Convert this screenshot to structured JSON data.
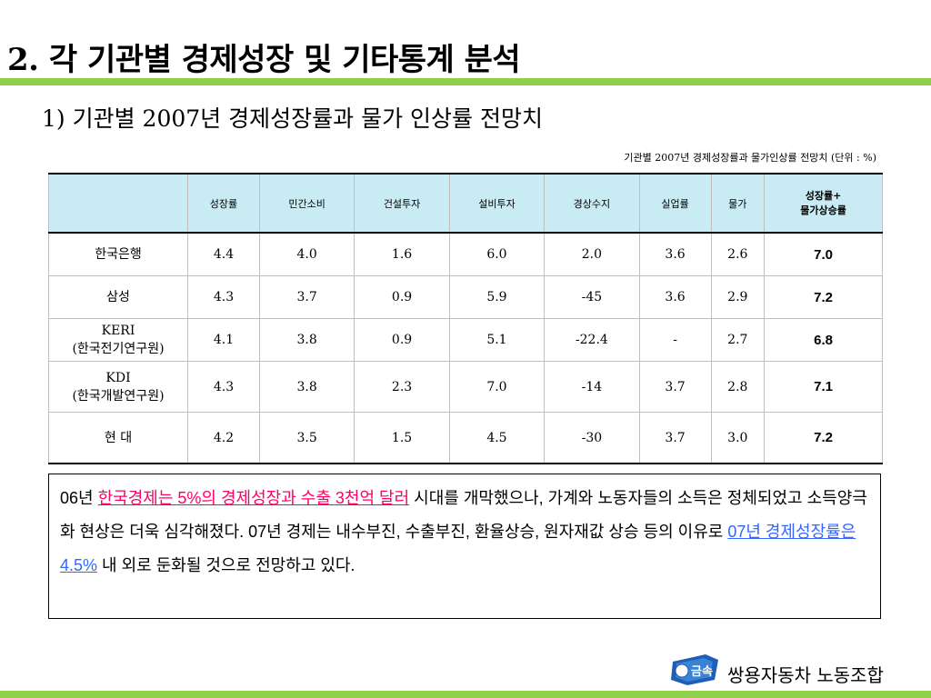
{
  "title": "2. 각 기관별 경제성장 및 기타통계 분석",
  "subtitle": "1) 기관별 2007년 경제성장률과 물가 인상률 전망치",
  "caption": "기관별 2007년 경제성장률과 물가인상률 전망치 (단위 : %)",
  "table": {
    "headers": [
      "성장률",
      "민간소비",
      "건설투자",
      "설비투자",
      "경상수지",
      "실업률",
      "물가"
    ],
    "last_header_line1": "성장률+",
    "last_header_line2": "물가상승률",
    "rows": [
      {
        "name1": "한국은행",
        "name2": "",
        "cells": [
          "4.4",
          "4.0",
          "1.6",
          "6.0",
          "2.0",
          "3.6",
          "2.6",
          "7.0"
        ]
      },
      {
        "name1": "삼성",
        "name2": "",
        "cells": [
          "4.3",
          "3.7",
          "0.9",
          "5.9",
          "-45",
          "3.6",
          "2.9",
          "7.2"
        ]
      },
      {
        "name1": "KERI",
        "name2": "(한국전기연구원)",
        "cells": [
          "4.1",
          "3.8",
          "0.9",
          "5.1",
          "-22.4",
          "-",
          "2.7",
          "6.8"
        ]
      },
      {
        "name1": "KDI",
        "name2": "(한국개발연구원)",
        "cells": [
          "4.3",
          "3.8",
          "2.3",
          "7.0",
          "-14",
          "3.7",
          "2.8",
          "7.1"
        ]
      },
      {
        "name1": "현 대",
        "name2": "",
        "cells": [
          "4.2",
          "3.5",
          "1.5",
          "4.5",
          "-30",
          "3.7",
          "3.0",
          "7.2"
        ]
      }
    ]
  },
  "note": {
    "part1": "06년 ",
    "highlight1": "한국경제는 5%의 경제성장과 수출 3천억 달러",
    "part2": " 시대를 개막했으나, 가계와 노동자들의 소득은 정체되었고 소득양극화 현상은 더욱 심각해졌다. 07년 경제는 내수부진, 수출부진, 환율상승, 원자재값 상승 등의 이유로 ",
    "highlight2": "07년 경제성장률은 4.5%",
    "part3": " 내 외로 둔화될 것으로 전망하고 있다.",
    "highlight1_color": "#ff0066",
    "highlight2_color": "#3366ff"
  },
  "footer": {
    "org_name": "쌍용자동차 노동조합",
    "logo_text": "금속"
  },
  "colors": {
    "accent_bar": "#8fd04a",
    "table_header_bg": "#c9ecf4"
  }
}
